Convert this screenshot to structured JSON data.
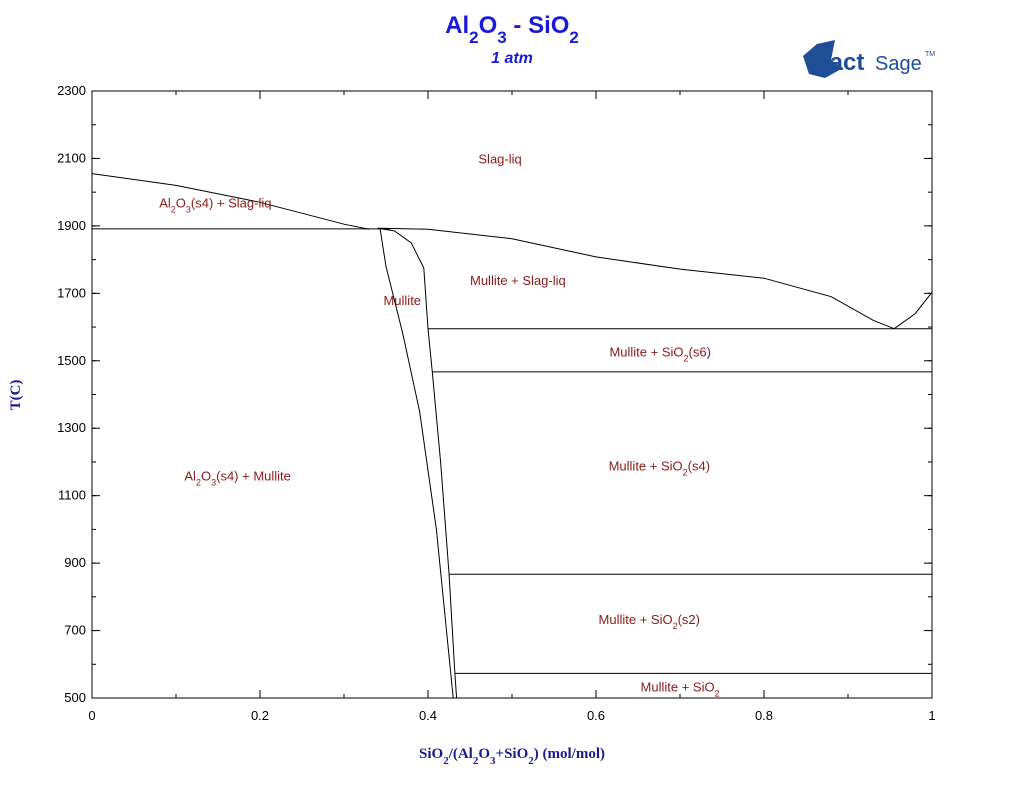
{
  "chart_data": {
    "type": "phase-diagram",
    "title": {
      "parts": [
        {
          "t": "Al",
          "s": 0
        },
        {
          "t": "2",
          "s": 1
        },
        {
          "t": "O",
          "s": 0
        },
        {
          "t": "3",
          "s": 1
        },
        {
          "t": " - SiO",
          "s": 0
        },
        {
          "t": "2",
          "s": 1
        }
      ]
    },
    "subtitle": "1 atm",
    "logo": {
      "fact": "Fact",
      "sage": "Sage",
      "tm": "TM"
    },
    "xlabel": {
      "parts": [
        {
          "t": "SiO",
          "s": 0
        },
        {
          "t": "2",
          "s": 1
        },
        {
          "t": "/(Al",
          "s": 0
        },
        {
          "t": "2",
          "s": 1
        },
        {
          "t": "O",
          "s": 0
        },
        {
          "t": "3",
          "s": 1
        },
        {
          "t": "+SiO",
          "s": 0
        },
        {
          "t": "2",
          "s": 1
        },
        {
          "t": ") (mol/mol)",
          "s": 0
        }
      ]
    },
    "ylabel": "T(C)",
    "xlim": [
      0,
      1
    ],
    "ylim": [
      500,
      2300
    ],
    "x_ticks": [
      {
        "v": 0,
        "label": "0"
      },
      {
        "v": 0.2,
        "label": "0.2"
      },
      {
        "v": 0.4,
        "label": "0.4"
      },
      {
        "v": 0.6,
        "label": "0.6"
      },
      {
        "v": 0.8,
        "label": "0.8"
      },
      {
        "v": 1,
        "label": "1"
      }
    ],
    "y_ticks": [
      {
        "v": 500,
        "label": "500"
      },
      {
        "v": 700,
        "label": "700"
      },
      {
        "v": 900,
        "label": "900"
      },
      {
        "v": 1100,
        "label": "1100"
      },
      {
        "v": 1300,
        "label": "1300"
      },
      {
        "v": 1500,
        "label": "1500"
      },
      {
        "v": 1700,
        "label": "1700"
      },
      {
        "v": 1900,
        "label": "1900"
      },
      {
        "v": 2100,
        "label": "2100"
      },
      {
        "v": 2300,
        "label": "2300"
      }
    ],
    "x_minor_step": 0.1,
    "y_minor_step": 100,
    "curves": [
      {
        "name": "liquidus-al2o3",
        "points": [
          [
            0,
            2055
          ],
          [
            0.1,
            2020
          ],
          [
            0.2,
            1970
          ],
          [
            0.3,
            1905
          ],
          [
            0.33,
            1890
          ]
        ]
      },
      {
        "name": "liquidus-mullite",
        "points": [
          [
            0.34,
            1893
          ],
          [
            0.4,
            1890
          ],
          [
            0.5,
            1862
          ],
          [
            0.6,
            1808
          ],
          [
            0.7,
            1772
          ],
          [
            0.8,
            1745
          ],
          [
            0.88,
            1690
          ],
          [
            0.93,
            1620
          ],
          [
            0.955,
            1595
          ]
        ]
      },
      {
        "name": "liquidus-sio2",
        "points": [
          [
            0.955,
            1595
          ],
          [
            0.98,
            1640
          ],
          [
            1.0,
            1703
          ]
        ]
      },
      {
        "name": "eutectic-al2o3-mullite",
        "points": [
          [
            0,
            1891
          ],
          [
            0.355,
            1891
          ]
        ]
      },
      {
        "name": "mullite-left-boundary",
        "points": [
          [
            0.343,
            1891
          ],
          [
            0.35,
            1780
          ],
          [
            0.37,
            1580
          ],
          [
            0.39,
            1350
          ],
          [
            0.41,
            1000
          ],
          [
            0.43,
            500
          ]
        ]
      },
      {
        "name": "mullite-right-boundary",
        "points": [
          [
            0.345,
            1891
          ],
          [
            0.36,
            1885
          ],
          [
            0.38,
            1850
          ],
          [
            0.395,
            1775
          ],
          [
            0.4,
            1595
          ],
          [
            0.405,
            1470
          ],
          [
            0.415,
            1200
          ],
          [
            0.425,
            870
          ],
          [
            0.432,
            572
          ],
          [
            0.434,
            500
          ]
        ]
      },
      {
        "name": "eutectic-mullite-sio2",
        "points": [
          [
            0.4,
            1595
          ],
          [
            1,
            1595
          ]
        ]
      },
      {
        "name": "transition-s6-s4",
        "points": [
          [
            0.405,
            1467
          ],
          [
            1,
            1467
          ]
        ]
      },
      {
        "name": "transition-s4-s2",
        "points": [
          [
            0.425,
            867
          ],
          [
            1,
            867
          ]
        ]
      },
      {
        "name": "transition-s2",
        "points": [
          [
            0.432,
            573
          ],
          [
            1,
            573
          ]
        ]
      }
    ],
    "region_labels": [
      {
        "name": "region-slag-liq",
        "x": 0.46,
        "y": 2085,
        "parts": [
          {
            "t": "Slag-liq",
            "s": 0
          }
        ]
      },
      {
        "name": "region-al2o3-slag",
        "x": 0.08,
        "y": 1955,
        "parts": [
          {
            "t": "Al",
            "s": 0
          },
          {
            "t": "2",
            "s": 1
          },
          {
            "t": "O",
            "s": 0
          },
          {
            "t": "3",
            "s": 1
          },
          {
            "t": "(s4) + Slag-liq",
            "s": 0
          }
        ]
      },
      {
        "name": "region-mullite-slag",
        "x": 0.45,
        "y": 1725,
        "parts": [
          {
            "t": "Mullite + Slag-liq",
            "s": 0
          }
        ]
      },
      {
        "name": "region-mullite",
        "x": 0.347,
        "y": 1665,
        "parts": [
          {
            "t": "Mullite",
            "s": 0
          }
        ]
      },
      {
        "name": "region-mullite-sio2-s6",
        "x": 0.616,
        "y": 1512,
        "parts": [
          {
            "t": "Mullite + SiO",
            "s": 0
          },
          {
            "t": "2",
            "s": 1
          },
          {
            "t": "(s6)",
            "s": 0
          }
        ]
      },
      {
        "name": "region-mullite-sio2-s4",
        "x": 0.615,
        "y": 1175,
        "parts": [
          {
            "t": "Mullite + SiO",
            "s": 0
          },
          {
            "t": "2",
            "s": 1
          },
          {
            "t": "(s4)",
            "s": 0
          }
        ]
      },
      {
        "name": "region-al2o3-mullite",
        "x": 0.11,
        "y": 1145,
        "parts": [
          {
            "t": "Al",
            "s": 0
          },
          {
            "t": "2",
            "s": 1
          },
          {
            "t": "O",
            "s": 0
          },
          {
            "t": "3",
            "s": 1
          },
          {
            "t": "(s4) + Mullite",
            "s": 0
          }
        ]
      },
      {
        "name": "region-mullite-sio2-s2",
        "x": 0.603,
        "y": 720,
        "parts": [
          {
            "t": "Mullite + SiO",
            "s": 0
          },
          {
            "t": "2",
            "s": 1
          },
          {
            "t": "(s2)",
            "s": 0
          }
        ]
      },
      {
        "name": "region-mullite-sio2",
        "x": 0.653,
        "y": 520,
        "parts": [
          {
            "t": "Mullite + SiO",
            "s": 0
          },
          {
            "t": "2",
            "s": 1
          }
        ]
      }
    ],
    "colors": {
      "line": "#000000",
      "title": "#1a1ad6",
      "axis_label": "#1a1a8c",
      "region_label": "#8b1a1a",
      "logo": "#1f4e96"
    }
  }
}
